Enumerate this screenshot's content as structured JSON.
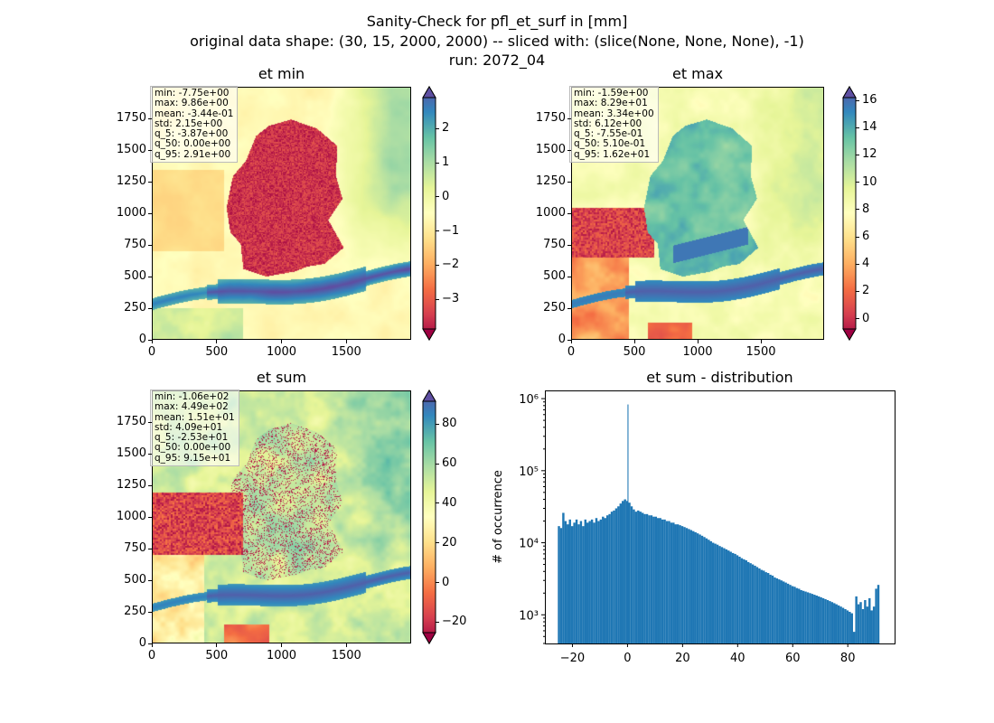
{
  "figure": {
    "title_lines": [
      "Sanity-Check for pfl_et_surf in [mm]",
      "original data shape: (30, 15, 2000, 2000) -- sliced with: (slice(None, None, None), -1)",
      "run: 2072_04"
    ]
  },
  "maps": [
    {
      "title": "et min",
      "stats": [
        "min: -7.75e+00",
        "max: 9.86e+00",
        "mean: -3.44e-01",
        "std: 2.15e+00",
        "q_5: -3.87e+00",
        "q_50: 0.00e+00",
        "q_95: 2.91e+00"
      ],
      "xticks": [
        "0",
        "500",
        "1000",
        "1500"
      ],
      "yticks": [
        "0",
        "250",
        "500",
        "750",
        "1000",
        "1250",
        "1500",
        "1750"
      ],
      "cbar_ticks": [
        "2",
        "1",
        "0",
        "−1",
        "−2",
        "−3"
      ],
      "cbar_range": [
        -3.87,
        2.91
      ],
      "cbar_tick_values": [
        2,
        1,
        0,
        -1,
        -2,
        -3
      ]
    },
    {
      "title": "et max",
      "stats": [
        "min: -1.59e+00",
        "max: 8.29e+01",
        "mean: 3.34e+00",
        "std: 6.12e+00",
        "q_5: -7.55e-01",
        "q_50: 5.10e-01",
        "q_95: 1.62e+01"
      ],
      "xticks": [
        "0",
        "500",
        "1000",
        "1500"
      ],
      "yticks": [
        "0",
        "250",
        "500",
        "750",
        "1000",
        "1250",
        "1500",
        "1750"
      ],
      "cbar_ticks": [
        "16",
        "14",
        "12",
        "10",
        "8",
        "6",
        "4",
        "2",
        "0"
      ],
      "cbar_range": [
        -0.755,
        16.2
      ],
      "cbar_tick_values": [
        16,
        14,
        12,
        10,
        8,
        6,
        4,
        2,
        0
      ]
    },
    {
      "title": "et sum",
      "stats": [
        "min: -1.06e+02",
        "max: 4.49e+02",
        "mean: 1.51e+01",
        "std: 4.09e+01",
        "q_5: -2.53e+01",
        "q_50: 0.00e+00",
        "q_95: 9.15e+01"
      ],
      "xticks": [
        "0",
        "500",
        "1000",
        "1500"
      ],
      "yticks": [
        "0",
        "250",
        "500",
        "750",
        "1000",
        "1250",
        "1500",
        "1750"
      ],
      "cbar_ticks": [
        "80",
        "60",
        "40",
        "20",
        "0",
        "−20"
      ],
      "cbar_range": [
        -25.3,
        91.5
      ],
      "cbar_tick_values": [
        80,
        60,
        40,
        20,
        0,
        -20
      ]
    }
  ],
  "chart_data": {
    "type": "bar",
    "title": "et sum - distribution",
    "xlabel": "",
    "ylabel": "# of occurrence",
    "xlim": [
      -30,
      97
    ],
    "ylim_log": [
      400,
      1300000
    ],
    "y_scale": "log",
    "x_ticks": [
      "−20",
      "0",
      "20",
      "40",
      "60",
      "80"
    ],
    "x_tick_values": [
      -20,
      0,
      20,
      40,
      60,
      80
    ],
    "y_ticks": [
      "10³",
      "10⁴",
      "10⁵",
      "10⁶"
    ],
    "y_tick_values": [
      1000,
      10000,
      100000,
      1000000
    ],
    "bar_color": "#1f77b4",
    "bins": [
      {
        "x": -25.3,
        "y": 17000
      },
      {
        "x": -24.5,
        "y": 16000
      },
      {
        "x": -23.7,
        "y": 26000
      },
      {
        "x": -22.9,
        "y": 20000
      },
      {
        "x": -22.1,
        "y": 18000
      },
      {
        "x": -21.3,
        "y": 21000
      },
      {
        "x": -20.5,
        "y": 17000
      },
      {
        "x": -19.7,
        "y": 19000
      },
      {
        "x": -18.9,
        "y": 21000
      },
      {
        "x": -18.1,
        "y": 18000
      },
      {
        "x": -17.3,
        "y": 20000
      },
      {
        "x": -16.5,
        "y": 17000
      },
      {
        "x": -15.7,
        "y": 21000
      },
      {
        "x": -14.9,
        "y": 19000
      },
      {
        "x": -14.1,
        "y": 20000
      },
      {
        "x": -13.3,
        "y": 21000
      },
      {
        "x": -12.5,
        "y": 19000
      },
      {
        "x": -11.7,
        "y": 22000
      },
      {
        "x": -10.9,
        "y": 20000
      },
      {
        "x": -10.1,
        "y": 21000
      },
      {
        "x": -9.3,
        "y": 23000
      },
      {
        "x": -8.5,
        "y": 22000
      },
      {
        "x": -7.7,
        "y": 24000
      },
      {
        "x": -6.9,
        "y": 25000
      },
      {
        "x": -6.1,
        "y": 27000
      },
      {
        "x": -5.3,
        "y": 28000
      },
      {
        "x": -4.5,
        "y": 30000
      },
      {
        "x": -3.7,
        "y": 32000
      },
      {
        "x": -2.9,
        "y": 35000
      },
      {
        "x": -2.1,
        "y": 38000
      },
      {
        "x": -1.3,
        "y": 40000
      },
      {
        "x": -0.5,
        "y": 38000
      },
      {
        "x": 0.0,
        "y": 830000
      },
      {
        "x": 0.3,
        "y": 36000
      },
      {
        "x": 1.1,
        "y": 32000
      },
      {
        "x": 1.9,
        "y": 29000
      },
      {
        "x": 2.7,
        "y": 27000
      },
      {
        "x": 3.5,
        "y": 28000
      },
      {
        "x": 4.3,
        "y": 27000
      },
      {
        "x": 5.1,
        "y": 26000
      },
      {
        "x": 5.9,
        "y": 25000
      },
      {
        "x": 6.7,
        "y": 25000
      },
      {
        "x": 7.5,
        "y": 24000
      },
      {
        "x": 8.3,
        "y": 24000
      },
      {
        "x": 9.1,
        "y": 23000
      },
      {
        "x": 9.9,
        "y": 23000
      },
      {
        "x": 10.7,
        "y": 22000
      },
      {
        "x": 11.5,
        "y": 22000
      },
      {
        "x": 12.3,
        "y": 21000
      },
      {
        "x": 13.1,
        "y": 21000
      },
      {
        "x": 13.9,
        "y": 20000
      },
      {
        "x": 14.7,
        "y": 20000
      },
      {
        "x": 15.5,
        "y": 19000
      },
      {
        "x": 16.3,
        "y": 19000
      },
      {
        "x": 17.1,
        "y": 18000
      },
      {
        "x": 17.9,
        "y": 18000
      },
      {
        "x": 18.7,
        "y": 17500
      },
      {
        "x": 19.5,
        "y": 17000
      },
      {
        "x": 20.3,
        "y": 16500
      },
      {
        "x": 21.1,
        "y": 16000
      },
      {
        "x": 21.9,
        "y": 15500
      },
      {
        "x": 22.7,
        "y": 15000
      },
      {
        "x": 23.5,
        "y": 14500
      },
      {
        "x": 24.3,
        "y": 14000
      },
      {
        "x": 25.1,
        "y": 13500
      },
      {
        "x": 25.9,
        "y": 13000
      },
      {
        "x": 26.7,
        "y": 12500
      },
      {
        "x": 27.5,
        "y": 12000
      },
      {
        "x": 28.3,
        "y": 11500
      },
      {
        "x": 29.1,
        "y": 11000
      },
      {
        "x": 29.9,
        "y": 10500
      },
      {
        "x": 30.7,
        "y": 10000
      },
      {
        "x": 31.5,
        "y": 9700
      },
      {
        "x": 32.3,
        "y": 9400
      },
      {
        "x": 33.1,
        "y": 9000
      },
      {
        "x": 33.9,
        "y": 8700
      },
      {
        "x": 34.7,
        "y": 8400
      },
      {
        "x": 35.5,
        "y": 8100
      },
      {
        "x": 36.3,
        "y": 7800
      },
      {
        "x": 37.1,
        "y": 7500
      },
      {
        "x": 37.9,
        "y": 7200
      },
      {
        "x": 38.7,
        "y": 7000
      },
      {
        "x": 39.5,
        "y": 6700
      },
      {
        "x": 40.3,
        "y": 6400
      },
      {
        "x": 41.1,
        "y": 6100
      },
      {
        "x": 41.9,
        "y": 5900
      },
      {
        "x": 42.7,
        "y": 5700
      },
      {
        "x": 43.5,
        "y": 5400
      },
      {
        "x": 44.3,
        "y": 5200
      },
      {
        "x": 45.1,
        "y": 5000
      },
      {
        "x": 45.9,
        "y": 4800
      },
      {
        "x": 46.7,
        "y": 4600
      },
      {
        "x": 47.5,
        "y": 4400
      },
      {
        "x": 48.3,
        "y": 4200
      },
      {
        "x": 49.1,
        "y": 4100
      },
      {
        "x": 49.9,
        "y": 3900
      },
      {
        "x": 50.7,
        "y": 3800
      },
      {
        "x": 51.5,
        "y": 3600
      },
      {
        "x": 52.3,
        "y": 3500
      },
      {
        "x": 53.1,
        "y": 3300
      },
      {
        "x": 53.9,
        "y": 3200
      },
      {
        "x": 54.7,
        "y": 3100
      },
      {
        "x": 55.5,
        "y": 3000
      },
      {
        "x": 56.3,
        "y": 2900
      },
      {
        "x": 57.1,
        "y": 2800
      },
      {
        "x": 57.9,
        "y": 2700
      },
      {
        "x": 58.7,
        "y": 2600
      },
      {
        "x": 59.5,
        "y": 2500
      },
      {
        "x": 60.3,
        "y": 2450
      },
      {
        "x": 61.1,
        "y": 2350
      },
      {
        "x": 61.9,
        "y": 2300
      },
      {
        "x": 62.7,
        "y": 2200
      },
      {
        "x": 63.5,
        "y": 2150
      },
      {
        "x": 64.3,
        "y": 2100
      },
      {
        "x": 65.1,
        "y": 2050
      },
      {
        "x": 65.9,
        "y": 2000
      },
      {
        "x": 66.7,
        "y": 1950
      },
      {
        "x": 67.5,
        "y": 1900
      },
      {
        "x": 68.3,
        "y": 1850
      },
      {
        "x": 69.1,
        "y": 1800
      },
      {
        "x": 69.9,
        "y": 1750
      },
      {
        "x": 70.7,
        "y": 1700
      },
      {
        "x": 71.5,
        "y": 1650
      },
      {
        "x": 72.3,
        "y": 1600
      },
      {
        "x": 73.1,
        "y": 1550
      },
      {
        "x": 73.9,
        "y": 1500
      },
      {
        "x": 74.7,
        "y": 1450
      },
      {
        "x": 75.5,
        "y": 1400
      },
      {
        "x": 76.3,
        "y": 1350
      },
      {
        "x": 77.1,
        "y": 1300
      },
      {
        "x": 77.9,
        "y": 1250
      },
      {
        "x": 78.7,
        "y": 1200
      },
      {
        "x": 79.5,
        "y": 1150
      },
      {
        "x": 80.3,
        "y": 1100
      },
      {
        "x": 81.1,
        "y": 1050
      },
      {
        "x": 81.9,
        "y": 580
      },
      {
        "x": 82.7,
        "y": 1800
      },
      {
        "x": 83.5,
        "y": 1400
      },
      {
        "x": 84.3,
        "y": 1500
      },
      {
        "x": 85.1,
        "y": 1200
      },
      {
        "x": 85.9,
        "y": 1600
      },
      {
        "x": 86.7,
        "y": 1300
      },
      {
        "x": 87.5,
        "y": 1700
      },
      {
        "x": 88.3,
        "y": 1150
      },
      {
        "x": 89.1,
        "y": 1300
      },
      {
        "x": 89.9,
        "y": 2300
      },
      {
        "x": 90.7,
        "y": 2600
      }
    ]
  }
}
